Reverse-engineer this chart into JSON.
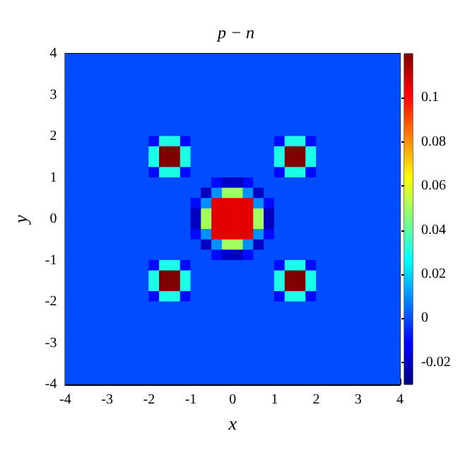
{
  "chart_data": {
    "type": "heatmap",
    "title": "p − n",
    "xlabel": "x",
    "ylabel": "y",
    "xlim": [
      -4,
      4
    ],
    "ylim": [
      -4,
      4
    ],
    "xticks": [
      -4,
      -3,
      -2,
      -1,
      0,
      1,
      2,
      3,
      4
    ],
    "yticks": [
      -4,
      -3,
      -2,
      -1,
      0,
      1,
      2,
      3,
      4
    ],
    "clim": [
      -0.03,
      0.12
    ],
    "cticks": [
      -0.02,
      0,
      0.02,
      0.04,
      0.06,
      0.08,
      0.1
    ],
    "cells": [
      [
        0,
        0,
        0,
        0,
        0,
        0,
        0,
        0,
        0,
        0,
        0,
        0,
        0,
        0,
        0,
        0,
        0,
        0,
        0,
        0,
        0,
        0,
        0,
        0,
        0,
        0,
        0,
        0,
        0,
        0,
        0,
        0
      ],
      [
        0,
        0,
        0,
        0,
        0,
        0,
        0,
        0,
        0,
        0,
        0,
        0,
        0,
        0,
        0,
        0,
        0,
        0,
        0,
        0,
        0,
        0,
        0,
        0,
        0,
        0,
        0,
        0,
        0,
        0,
        0,
        0
      ],
      [
        0,
        0,
        0,
        0,
        0,
        0,
        0,
        0,
        0,
        0,
        0,
        0,
        0,
        0,
        0,
        0,
        0,
        0,
        0,
        0,
        0,
        0,
        0,
        0,
        0,
        0,
        0,
        0,
        0,
        0,
        0,
        0
      ],
      [
        0,
        0,
        0,
        0,
        0,
        0,
        0,
        0,
        0,
        0,
        0,
        0,
        0,
        0,
        0,
        0,
        0,
        0,
        0,
        0,
        0,
        0,
        0,
        0,
        0,
        0,
        0,
        0,
        0,
        0,
        0,
        0
      ],
      [
        0,
        0,
        0,
        0,
        0,
        0,
        0,
        0,
        0,
        0,
        0,
        0,
        0,
        0,
        0,
        0,
        0,
        0,
        0,
        0,
        0,
        0,
        0,
        0,
        0,
        0,
        0,
        0,
        0,
        0,
        0,
        0
      ],
      [
        0,
        0,
        0,
        0,
        0,
        0,
        0,
        0,
        0,
        0,
        0,
        0,
        0,
        0,
        0,
        0,
        0,
        0,
        0,
        0,
        0,
        0,
        0,
        0,
        0,
        0,
        0,
        0,
        0,
        0,
        0,
        0
      ],
      [
        0,
        0,
        0,
        0,
        0,
        0,
        0,
        0,
        0,
        0,
        0,
        0,
        0,
        0,
        0,
        0,
        0,
        0,
        0,
        0,
        0,
        0,
        0,
        0,
        0,
        0,
        0,
        0,
        0,
        0,
        0,
        0
      ],
      [
        0,
        0,
        0,
        0,
        0,
        0,
        0,
        0,
        0,
        0,
        0,
        0,
        0,
        0,
        0,
        0,
        0,
        0,
        0,
        0,
        0,
        0,
        0,
        0,
        0,
        0,
        0,
        0,
        0,
        0,
        0,
        0
      ],
      [
        0,
        0,
        0,
        0,
        0,
        0,
        0,
        0,
        -0.01,
        0.03,
        0.03,
        -0.01,
        0,
        0,
        0,
        0,
        0,
        0,
        0,
        0,
        -0.01,
        0.03,
        0.03,
        -0.01,
        0,
        0,
        0,
        0,
        0,
        0,
        0,
        0
      ],
      [
        0,
        0,
        0,
        0,
        0,
        0,
        0,
        0,
        0.03,
        0.12,
        0.12,
        0.03,
        0,
        0,
        0,
        0,
        0,
        0,
        0,
        0,
        0.03,
        0.12,
        0.12,
        0.03,
        0,
        0,
        0,
        0,
        0,
        0,
        0,
        0
      ],
      [
        0,
        0,
        0,
        0,
        0,
        0,
        0,
        0,
        0.03,
        0.12,
        0.12,
        0.03,
        0,
        0,
        0,
        0,
        0,
        0,
        0,
        0,
        0.03,
        0.12,
        0.12,
        0.03,
        0,
        0,
        0,
        0,
        0,
        0,
        0,
        0
      ],
      [
        0,
        0,
        0,
        0,
        0,
        0,
        0,
        0,
        -0.01,
        0.03,
        0.03,
        -0.01,
        0,
        0,
        0,
        0,
        0,
        0,
        0,
        0,
        -0.01,
        0.03,
        0.03,
        -0.01,
        0,
        0,
        0,
        0,
        0,
        0,
        0,
        0
      ],
      [
        0,
        0,
        0,
        0,
        0,
        0,
        0,
        0,
        0,
        0,
        0,
        0,
        0,
        0,
        -0.01,
        -0.02,
        -0.02,
        -0.01,
        0,
        0,
        0,
        0,
        0,
        0,
        0,
        0,
        0,
        0,
        0,
        0,
        0,
        0
      ],
      [
        0,
        0,
        0,
        0,
        0,
        0,
        0,
        0,
        0,
        0,
        0,
        0,
        0,
        -0.02,
        0.01,
        0.05,
        0.05,
        0.01,
        -0.02,
        0,
        0,
        0,
        0,
        0,
        0,
        0,
        0,
        0,
        0,
        0,
        0,
        0
      ],
      [
        0,
        0,
        0,
        0,
        0,
        0,
        0,
        0,
        0,
        0,
        0,
        0,
        -0.01,
        0.01,
        0.105,
        0.105,
        0.105,
        0.105,
        0.01,
        -0.01,
        0,
        0,
        0,
        0,
        0,
        0,
        0,
        0,
        0,
        0,
        0,
        0
      ],
      [
        0,
        0,
        0,
        0,
        0,
        0,
        0,
        0,
        0,
        0,
        0,
        0,
        -0.02,
        0.05,
        0.105,
        0.105,
        0.105,
        0.105,
        0.05,
        -0.02,
        0,
        0,
        0,
        0,
        0,
        0,
        0,
        0,
        0,
        0,
        0,
        0
      ],
      [
        0,
        0,
        0,
        0,
        0,
        0,
        0,
        0,
        0,
        0,
        0,
        0,
        -0.02,
        0.05,
        0.105,
        0.105,
        0.105,
        0.105,
        0.05,
        -0.02,
        0,
        0,
        0,
        0,
        0,
        0,
        0,
        0,
        0,
        0,
        0,
        0
      ],
      [
        0,
        0,
        0,
        0,
        0,
        0,
        0,
        0,
        0,
        0,
        0,
        0,
        -0.01,
        0.01,
        0.105,
        0.105,
        0.105,
        0.105,
        0.01,
        -0.01,
        0,
        0,
        0,
        0,
        0,
        0,
        0,
        0,
        0,
        0,
        0,
        0
      ],
      [
        0,
        0,
        0,
        0,
        0,
        0,
        0,
        0,
        0,
        0,
        0,
        0,
        0,
        -0.02,
        0.01,
        0.05,
        0.05,
        0.01,
        -0.02,
        0,
        0,
        0,
        0,
        0,
        0,
        0,
        0,
        0,
        0,
        0,
        0,
        0
      ],
      [
        0,
        0,
        0,
        0,
        0,
        0,
        0,
        0,
        0,
        0,
        0,
        0,
        0,
        0,
        -0.01,
        -0.02,
        -0.02,
        -0.01,
        0,
        0,
        0,
        0,
        0,
        0,
        0,
        0,
        0,
        0,
        0,
        0,
        0,
        0
      ],
      [
        0,
        0,
        0,
        0,
        0,
        0,
        0,
        0,
        -0.01,
        0.03,
        0.03,
        -0.01,
        0,
        0,
        0,
        0,
        0,
        0,
        0,
        0,
        -0.01,
        0.03,
        0.03,
        -0.01,
        0,
        0,
        0,
        0,
        0,
        0,
        0,
        0
      ],
      [
        0,
        0,
        0,
        0,
        0,
        0,
        0,
        0,
        0.03,
        0.12,
        0.12,
        0.03,
        0,
        0,
        0,
        0,
        0,
        0,
        0,
        0,
        0.03,
        0.12,
        0.12,
        0.03,
        0,
        0,
        0,
        0,
        0,
        0,
        0,
        0
      ],
      [
        0,
        0,
        0,
        0,
        0,
        0,
        0,
        0,
        0.03,
        0.12,
        0.12,
        0.03,
        0,
        0,
        0,
        0,
        0,
        0,
        0,
        0,
        0.03,
        0.12,
        0.12,
        0.03,
        0,
        0,
        0,
        0,
        0,
        0,
        0,
        0
      ],
      [
        0,
        0,
        0,
        0,
        0,
        0,
        0,
        0,
        -0.01,
        0.03,
        0.03,
        -0.01,
        0,
        0,
        0,
        0,
        0,
        0,
        0,
        0,
        -0.01,
        0.03,
        0.03,
        -0.01,
        0,
        0,
        0,
        0,
        0,
        0,
        0,
        0
      ],
      [
        0,
        0,
        0,
        0,
        0,
        0,
        0,
        0,
        0,
        0,
        0,
        0,
        0,
        0,
        0,
        0,
        0,
        0,
        0,
        0,
        0,
        0,
        0,
        0,
        0,
        0,
        0,
        0,
        0,
        0,
        0,
        0
      ],
      [
        0,
        0,
        0,
        0,
        0,
        0,
        0,
        0,
        0,
        0,
        0,
        0,
        0,
        0,
        0,
        0,
        0,
        0,
        0,
        0,
        0,
        0,
        0,
        0,
        0,
        0,
        0,
        0,
        0,
        0,
        0,
        0
      ],
      [
        0,
        0,
        0,
        0,
        0,
        0,
        0,
        0,
        0,
        0,
        0,
        0,
        0,
        0,
        0,
        0,
        0,
        0,
        0,
        0,
        0,
        0,
        0,
        0,
        0,
        0,
        0,
        0,
        0,
        0,
        0,
        0
      ],
      [
        0,
        0,
        0,
        0,
        0,
        0,
        0,
        0,
        0,
        0,
        0,
        0,
        0,
        0,
        0,
        0,
        0,
        0,
        0,
        0,
        0,
        0,
        0,
        0,
        0,
        0,
        0,
        0,
        0,
        0,
        0,
        0
      ],
      [
        0,
        0,
        0,
        0,
        0,
        0,
        0,
        0,
        0,
        0,
        0,
        0,
        0,
        0,
        0,
        0,
        0,
        0,
        0,
        0,
        0,
        0,
        0,
        0,
        0,
        0,
        0,
        0,
        0,
        0,
        0,
        0
      ],
      [
        0,
        0,
        0,
        0,
        0,
        0,
        0,
        0,
        0,
        0,
        0,
        0,
        0,
        0,
        0,
        0,
        0,
        0,
        0,
        0,
        0,
        0,
        0,
        0,
        0,
        0,
        0,
        0,
        0,
        0,
        0,
        0
      ],
      [
        0,
        0,
        0,
        0,
        0,
        0,
        0,
        0,
        0,
        0,
        0,
        0,
        0,
        0,
        0,
        0,
        0,
        0,
        0,
        0,
        0,
        0,
        0,
        0,
        0,
        0,
        0,
        0,
        0,
        0,
        0,
        0
      ],
      [
        0,
        0,
        0,
        0,
        0,
        0,
        0,
        0,
        0,
        0,
        0,
        0,
        0,
        0,
        0,
        0,
        0,
        0,
        0,
        0,
        0,
        0,
        0,
        0,
        0,
        0,
        0,
        0,
        0,
        0,
        0,
        0
      ]
    ]
  }
}
